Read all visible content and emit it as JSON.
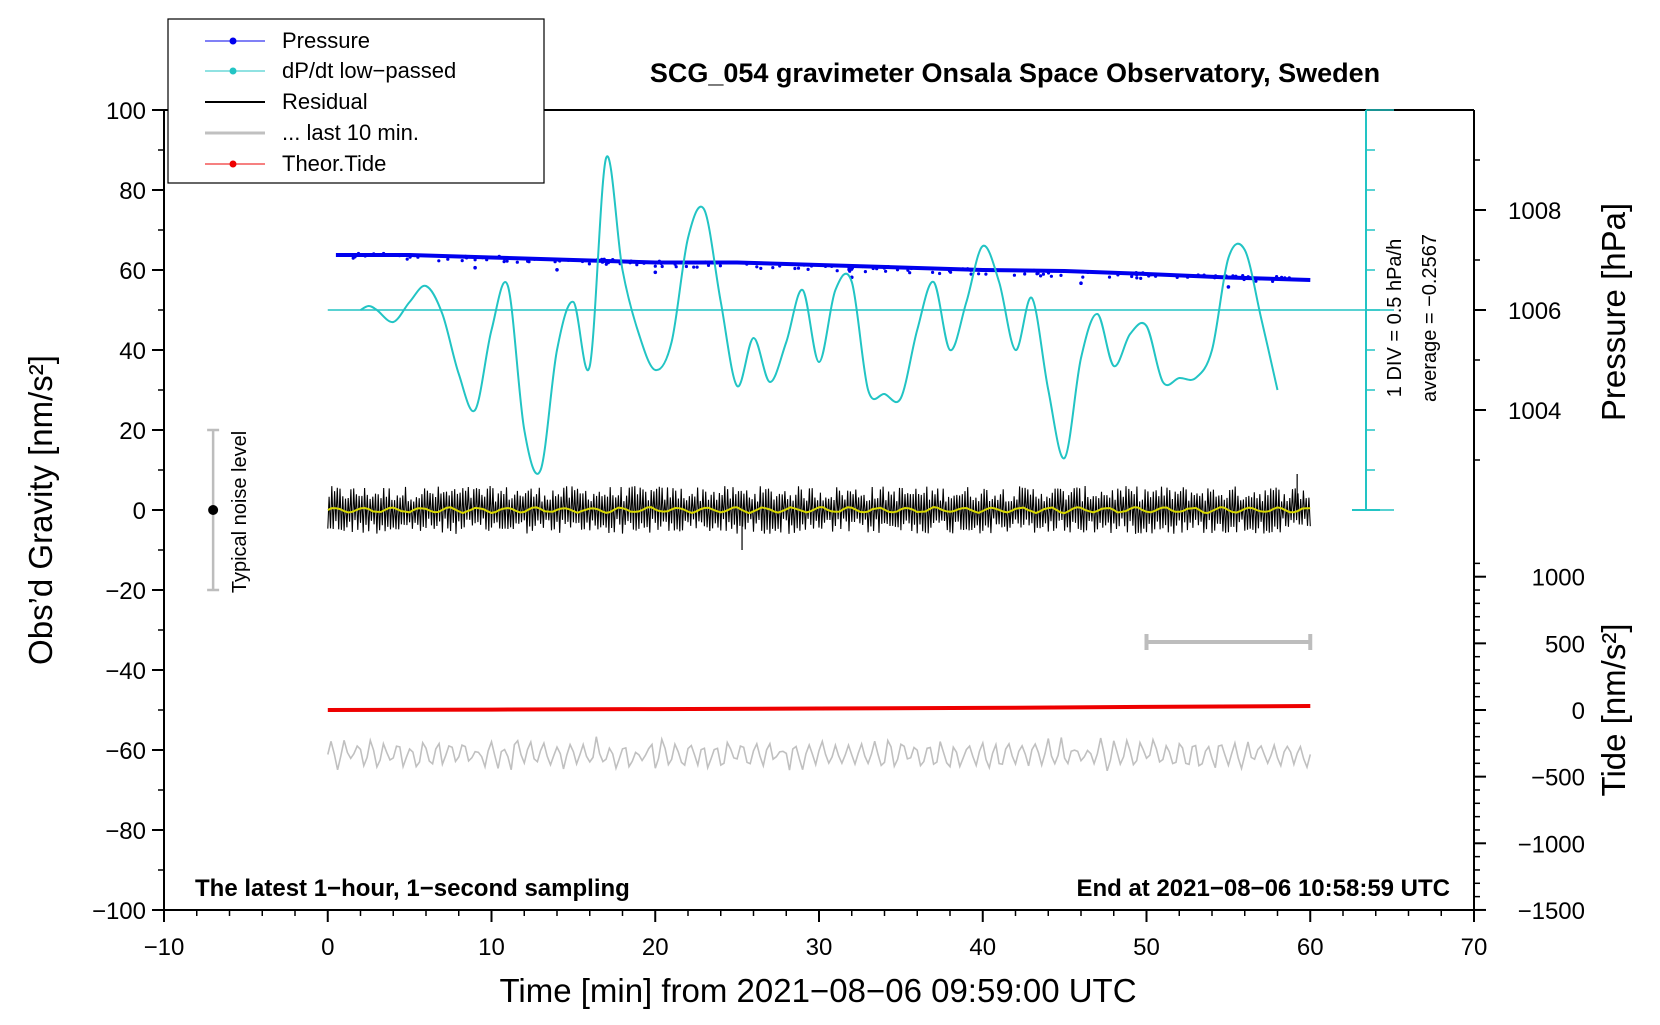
{
  "chart_data": {
    "type": "line",
    "title": "SCG_054 gravimeter Onsala Space Observatory, Sweden",
    "xlabel": "Time [min] from 2021−08−06 09:59:00 UTC",
    "ylabel_left": "Obs’d Gravity [nm/s²]",
    "ylabel_right_top": "Pressure [hPa]",
    "ylabel_right_bottom": "Tide [nm/s²]",
    "xlim": [
      -10,
      70
    ],
    "ylim": [
      -100,
      100
    ],
    "pressure_lim": [
      1002,
      1010
    ],
    "tide_lim": [
      -1500,
      1500
    ],
    "x_ticks": [
      -10,
      0,
      10,
      20,
      30,
      40,
      50,
      60,
      70
    ],
    "x_tick_labels": [
      "−10",
      "0",
      "10",
      "20",
      "30",
      "40",
      "50",
      "60",
      "70"
    ],
    "y_ticks": [
      100,
      80,
      60,
      40,
      20,
      0,
      -20,
      -40,
      -60,
      -80,
      -100
    ],
    "y_tick_labels": [
      "100",
      "80",
      "60",
      "40",
      "20",
      "0",
      "−20",
      "−40",
      "−60",
      "−80",
      "−100"
    ],
    "pressure_ticks": [
      1008,
      1006,
      1004
    ],
    "pressure_tick_labels": [
      "1008",
      "1006",
      "1004"
    ],
    "tide_ticks": [
      1000,
      500,
      0,
      -500,
      -1000,
      -1500
    ],
    "tide_tick_labels": [
      "1000",
      "500",
      "0",
      "−500",
      "−1000",
      "−1500"
    ],
    "legend": [
      "Pressure",
      "dP/dt low−passed",
      "Residual",
      "... last 10 min.",
      "Theor.Tide"
    ],
    "legend_position": "top-left",
    "annotations": {
      "noise_label": "Typical noise level",
      "noise_range": [
        -20,
        20
      ],
      "noise_x": -7,
      "div_label": "1 DIV = 0.5 hPa/h",
      "average_label": "average = −0.2567",
      "bottom_left": "The latest 1−hour, 1−second sampling",
      "bottom_right": "End at 2021−08−06 10:58:59 UTC",
      "last10_range": [
        50,
        60
      ],
      "last10_level": -33
    },
    "series": [
      {
        "name": "Pressure",
        "axis": "pressure",
        "color": "#0000ee",
        "x": [
          0.5,
          5,
          10,
          15,
          20,
          25,
          30,
          35,
          40,
          45,
          50,
          55,
          60
        ],
        "values": [
          1007.1,
          1007.1,
          1007.05,
          1007.0,
          1006.95,
          1006.95,
          1006.9,
          1006.85,
          1006.8,
          1006.78,
          1006.72,
          1006.65,
          1006.6
        ]
      },
      {
        "name": "dP/dt low−passed",
        "axis": "left",
        "color": "#22c4c4",
        "x": [
          2,
          2.5,
          3,
          4,
          5,
          6,
          7,
          8,
          9,
          10,
          11,
          12,
          13,
          14,
          15,
          16,
          17,
          18,
          19,
          20,
          21,
          22,
          23,
          24,
          25,
          26,
          27,
          28,
          29,
          30,
          31,
          32,
          33,
          34,
          35,
          36,
          37,
          38,
          39,
          40,
          41,
          42,
          43,
          44,
          45,
          46,
          47,
          48,
          49,
          50,
          51,
          52,
          53,
          54,
          55,
          56,
          57,
          58
        ],
        "values": [
          50,
          51,
          50,
          47,
          52,
          56,
          49,
          34,
          25,
          45,
          56,
          20,
          10,
          40,
          52,
          36,
          88,
          60,
          44,
          35,
          42,
          68,
          75,
          52,
          31,
          43,
          32,
          42,
          55,
          37,
          55,
          57,
          30,
          29,
          28,
          45,
          57,
          40,
          52,
          66,
          57,
          40,
          53,
          30,
          13,
          38,
          49,
          36,
          44,
          46,
          32,
          33,
          33,
          40,
          63,
          65,
          48,
          30
        ]
      },
      {
        "name": "Residual",
        "axis": "left",
        "color": "#000000",
        "x_range": [
          0,
          60
        ],
        "amplitude": 6,
        "extremes": [
          -10,
          9
        ]
      },
      {
        "name": "... last 10 min.",
        "axis": "left",
        "color": "#c0c0c0",
        "x_range": [
          0,
          60
        ],
        "level": -61,
        "amplitude": 4
      },
      {
        "name": "Theor.Tide",
        "axis": "tide",
        "color": "#ee0000",
        "x": [
          0,
          10,
          20,
          30,
          40,
          50,
          60
        ],
        "values": [
          0,
          3,
          7,
          11,
          16,
          23,
          30
        ]
      }
    ]
  }
}
